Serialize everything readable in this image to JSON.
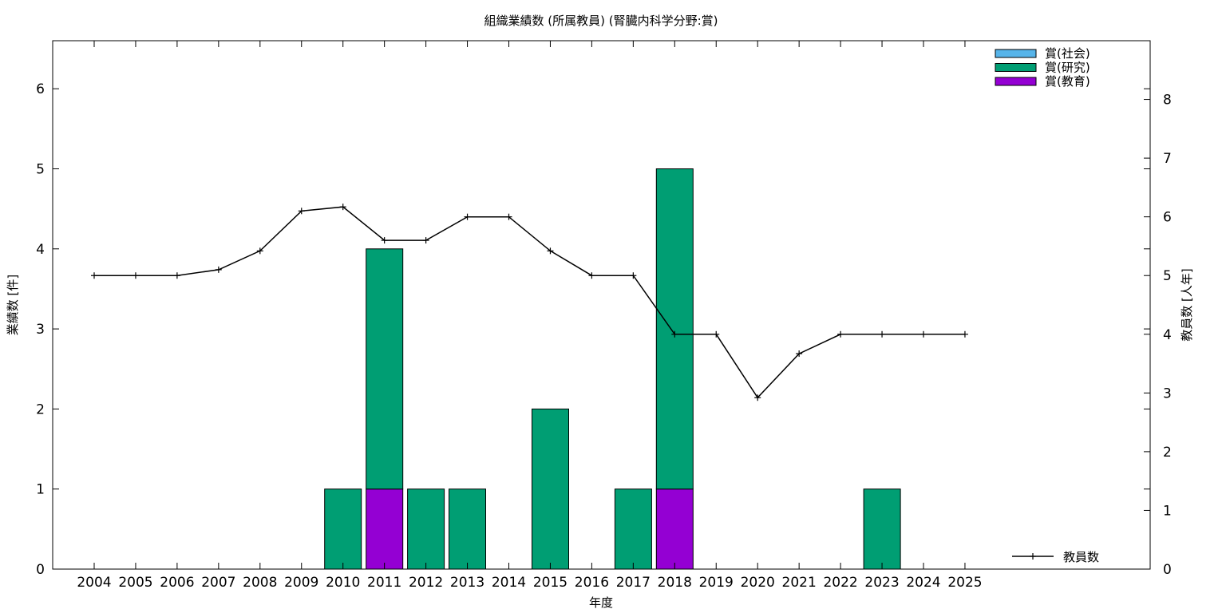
{
  "chart_data": {
    "type": "bar",
    "title": "組織業績数 (所属教員) (腎臓内科学分野:賞)",
    "xlabel": "年度",
    "ylabel": "業績数 [件]",
    "y2label": "教員数 [人年]",
    "ylim": [
      0,
      6.6
    ],
    "y2lim": [
      0,
      9
    ],
    "yticks": [
      0,
      1,
      2,
      3,
      4,
      5,
      6
    ],
    "y2ticks": [
      0,
      1,
      2,
      3,
      4,
      5,
      6,
      7,
      8
    ],
    "grid": false,
    "stacked": true,
    "categories": [
      "2004",
      "2005",
      "2006",
      "2007",
      "2008",
      "2009",
      "2010",
      "2011",
      "2012",
      "2013",
      "2014",
      "2015",
      "2016",
      "2017",
      "2018",
      "2019",
      "2020",
      "2021",
      "2022",
      "2023",
      "2024",
      "2025"
    ],
    "series": [
      {
        "name": "賞(教育)",
        "color": "#9400d3",
        "values": [
          0,
          0,
          0,
          0,
          0,
          0,
          0,
          1,
          0,
          0,
          0,
          0,
          0,
          0,
          1,
          0,
          0,
          0,
          0,
          0,
          0,
          0
        ]
      },
      {
        "name": "賞(研究)",
        "color": "#009e73",
        "values": [
          0,
          0,
          0,
          0,
          0,
          0,
          1,
          3,
          1,
          1,
          0,
          2,
          0,
          1,
          4,
          0,
          0,
          0,
          0,
          1,
          0,
          0
        ]
      },
      {
        "name": "賞(社会)",
        "color": "#56b4e9",
        "values": [
          0,
          0,
          0,
          0,
          0,
          0,
          0,
          0,
          0,
          0,
          0,
          0,
          0,
          0,
          0,
          0,
          0,
          0,
          0,
          0,
          0,
          0
        ]
      }
    ],
    "legend_order": [
      "賞(社会)",
      "賞(研究)",
      "賞(教育)"
    ],
    "legend_position": "top-right",
    "line_series": {
      "name": "教員数",
      "axis": "right",
      "color": "#000000",
      "values": [
        5,
        5,
        5,
        5.1,
        5.42,
        6.1,
        6.17,
        5.6,
        5.6,
        6,
        6,
        5.42,
        5,
        5,
        4,
        4,
        2.92,
        3.67,
        4,
        4,
        4,
        4
      ]
    },
    "line_legend_position": "bottom-right"
  }
}
